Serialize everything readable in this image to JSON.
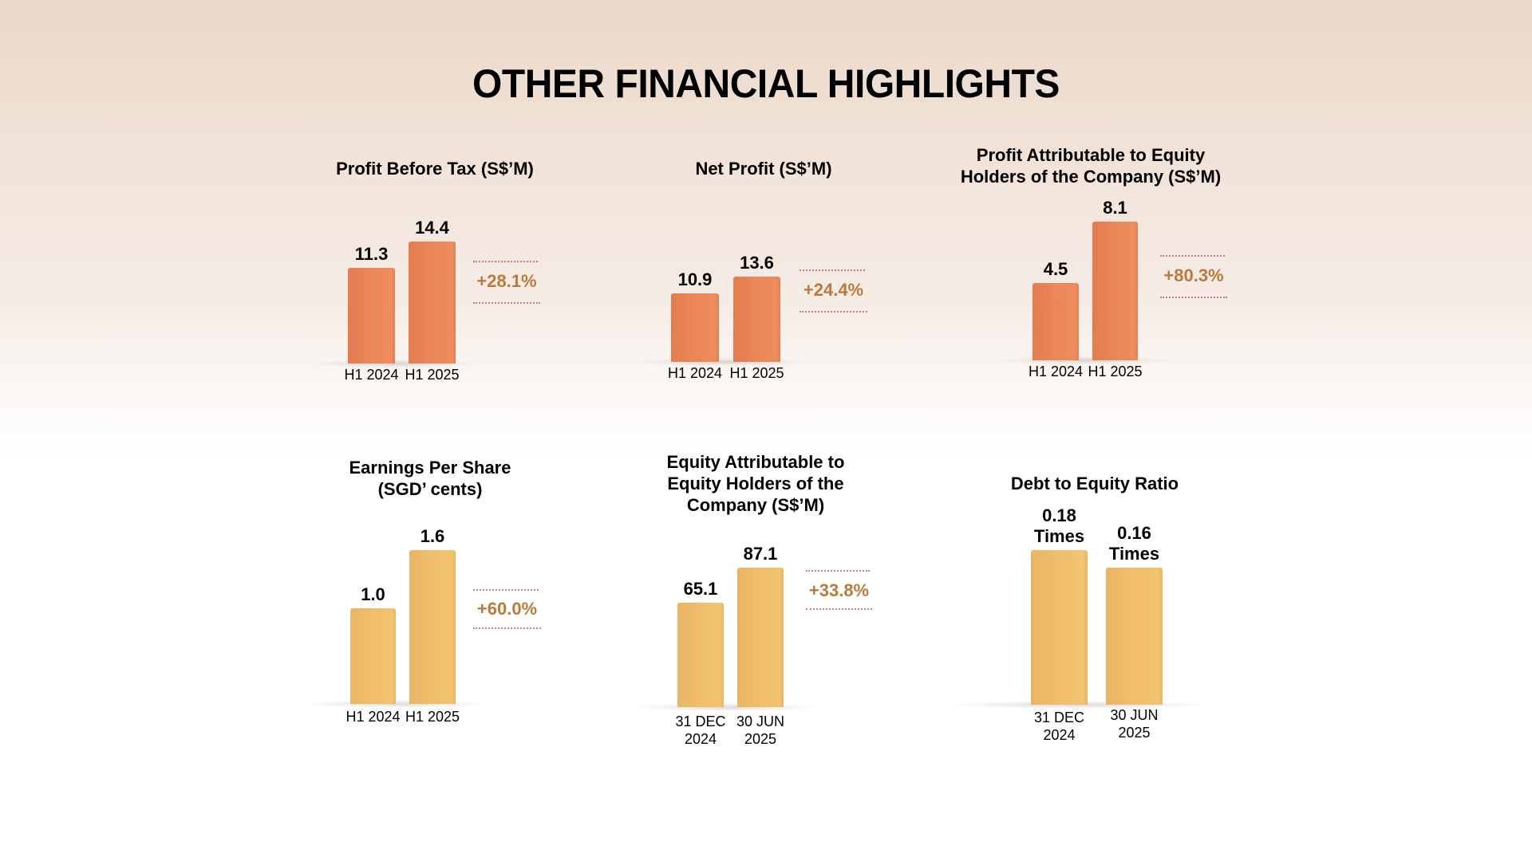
{
  "page": {
    "title": "OTHER FINANCIAL HIGHLIGHTS"
  },
  "colors": {
    "orange_bar": "#EA865A",
    "yellow_bar": "#F0BD6B",
    "growth_text": "#B97A3B",
    "dotted_line": "#B5687A"
  },
  "chart_data": [
    {
      "type": "bar",
      "title_lines": [
        "Profit Before Tax (S$’M)"
      ],
      "categories": [
        [
          "H1 2024"
        ],
        [
          "H1 2025"
        ]
      ],
      "values": [
        11.3,
        14.4
      ],
      "value_labels": [
        [
          "11.3"
        ],
        [
          "14.4"
        ]
      ],
      "growth": "+28.1%",
      "color": "orange",
      "ylim": [
        0,
        18.8
      ],
      "xlabel": "",
      "ylabel": "",
      "grid": false
    },
    {
      "type": "bar",
      "title_lines": [
        "Net Profit (S$’M)"
      ],
      "categories": [
        [
          "H1 2024"
        ],
        [
          "H1 2025"
        ]
      ],
      "values": [
        10.9,
        13.6
      ],
      "value_labels": [
        [
          "10.9"
        ],
        [
          "13.6"
        ]
      ],
      "growth": "+24.4%",
      "color": "orange",
      "ylim": [
        0,
        25.4
      ],
      "xlabel": "",
      "ylabel": "",
      "grid": false
    },
    {
      "type": "bar",
      "title_lines": [
        "Profit Attributable to Equity",
        "Holders of the Company (S$’M)"
      ],
      "categories": [
        [
          "H1 2024"
        ],
        [
          "H1 2025"
        ]
      ],
      "values": [
        4.5,
        8.1
      ],
      "value_labels": [
        [
          "4.5"
        ],
        [
          "8.1"
        ]
      ],
      "growth": "+80.3%",
      "color": "orange",
      "ylim": [
        0,
        9.3
      ],
      "xlabel": "",
      "ylabel": "",
      "grid": false
    },
    {
      "type": "bar",
      "title_lines": [
        "Earnings Per Share",
        "(SGD’ cents)"
      ],
      "categories": [
        [
          "H1 2024"
        ],
        [
          "H1 2025"
        ]
      ],
      "values": [
        1.0,
        1.6
      ],
      "value_labels": [
        [
          "1.0"
        ],
        [
          "1.6"
        ]
      ],
      "growth": "+60.0%",
      "color": "yellow",
      "ylim": [
        0,
        1.66
      ],
      "xlabel": "",
      "ylabel": "",
      "grid": false
    },
    {
      "type": "bar",
      "title_lines": [
        "Equity Attributable to",
        "Equity Holders of the",
        "Company (S$’M)"
      ],
      "categories": [
        [
          "31 DEC",
          "2024"
        ],
        [
          "30 JUN",
          "2025"
        ]
      ],
      "values": [
        65.1,
        87.1
      ],
      "value_labels": [
        [
          "65.1"
        ],
        [
          "87.1"
        ]
      ],
      "growth": "+33.8%",
      "color": "yellow",
      "ylim": [
        0,
        99.5
      ],
      "xlabel": "",
      "ylabel": "",
      "grid": false
    },
    {
      "type": "bar",
      "title_lines": [
        "Debt to Equity Ratio"
      ],
      "categories": [
        [
          "31 DEC",
          "2024"
        ],
        [
          "30 JUN",
          "2025"
        ]
      ],
      "values": [
        0.18,
        0.16
      ],
      "value_labels": [
        [
          "0.18",
          "Times"
        ],
        [
          "0.16",
          "Times"
        ]
      ],
      "growth": null,
      "color": "yellow",
      "ylim": [
        0,
        0.186
      ],
      "xlabel": "",
      "ylabel": "",
      "grid": false
    }
  ]
}
